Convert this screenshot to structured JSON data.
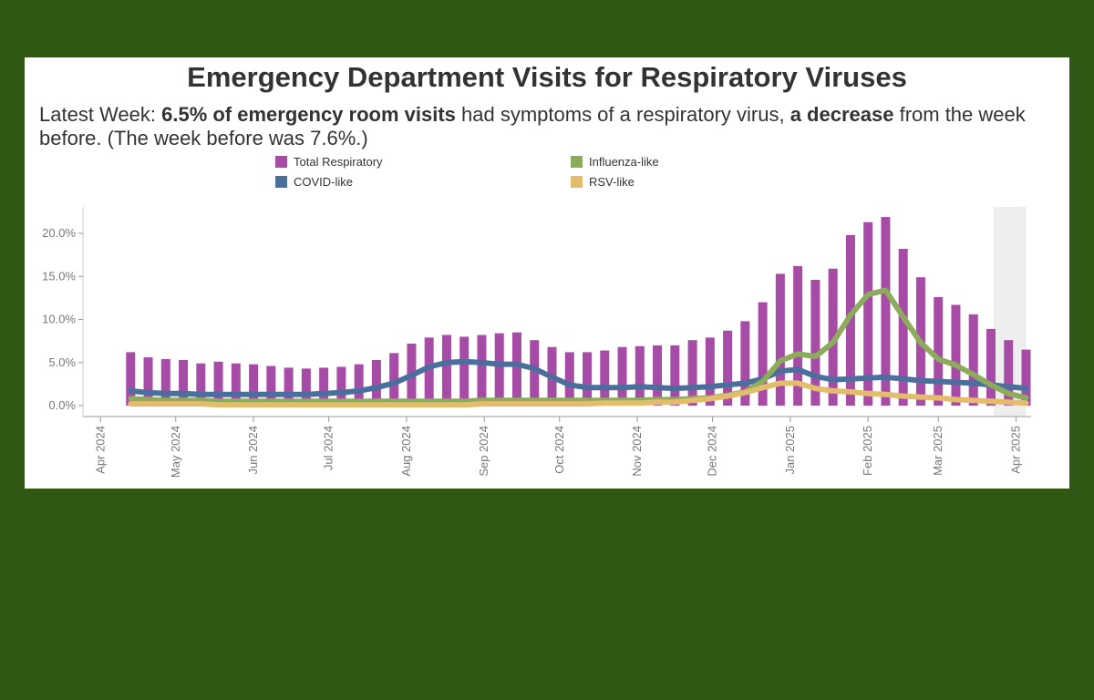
{
  "chart_data": {
    "type": "bar",
    "title": "Emergency Department Visits for Respiratory Viruses",
    "subtitle": {
      "p1": "Latest Week: ",
      "b1": "6.5% of emergency room visits",
      "p2": " had symptoms of a respiratory virus, ",
      "b2": "a decrease",
      "p3": " from the week before. (The week before was 7.6%.)"
    },
    "y_ticks": [
      "0.0%",
      "5.0%",
      "10.0%",
      "15.0%",
      "20.0%"
    ],
    "y_tick_values": [
      0,
      5,
      10,
      15,
      20
    ],
    "ylim": [
      0,
      22.8
    ],
    "x_ticks": [
      {
        "label": "Apr 2024",
        "date": "2024-04-01"
      },
      {
        "label": "May 2024",
        "date": "2024-05-01"
      },
      {
        "label": "Jun 2024",
        "date": "2024-06-01"
      },
      {
        "label": "Jul 2024",
        "date": "2024-07-01"
      },
      {
        "label": "Aug 2024",
        "date": "2024-08-01"
      },
      {
        "label": "Sep 2024",
        "date": "2024-09-01"
      },
      {
        "label": "Oct 2024",
        "date": "2024-10-01"
      },
      {
        "label": "Nov 2024",
        "date": "2024-11-01"
      },
      {
        "label": "Dec 2024",
        "date": "2024-12-01"
      },
      {
        "label": "Jan 2025",
        "date": "2025-01-01"
      },
      {
        "label": "Feb 2025",
        "date": "2025-02-01"
      },
      {
        "label": "Mar 2025",
        "date": "2025-03-01"
      },
      {
        "label": "Apr 2025",
        "date": "2025-04-01"
      }
    ],
    "xlim": [
      "2024-03-25",
      "2025-04-07"
    ],
    "highlight_range": [
      "2025-03-23",
      "2025-04-05"
    ],
    "legend_position": "top",
    "dates": [
      "2024-04-13",
      "2024-04-20",
      "2024-04-27",
      "2024-05-04",
      "2024-05-11",
      "2024-05-18",
      "2024-05-25",
      "2024-06-01",
      "2024-06-08",
      "2024-06-15",
      "2024-06-22",
      "2024-06-29",
      "2024-07-06",
      "2024-07-13",
      "2024-07-20",
      "2024-07-27",
      "2024-08-03",
      "2024-08-10",
      "2024-08-17",
      "2024-08-24",
      "2024-08-31",
      "2024-09-07",
      "2024-09-14",
      "2024-09-21",
      "2024-09-28",
      "2024-10-05",
      "2024-10-12",
      "2024-10-19",
      "2024-10-26",
      "2024-11-02",
      "2024-11-09",
      "2024-11-16",
      "2024-11-23",
      "2024-11-30",
      "2024-12-07",
      "2024-12-14",
      "2024-12-21",
      "2024-12-28",
      "2025-01-04",
      "2025-01-11",
      "2025-01-18",
      "2025-01-25",
      "2025-02-01",
      "2025-02-08",
      "2025-02-15",
      "2025-02-22",
      "2025-03-01",
      "2025-03-08",
      "2025-03-15",
      "2025-03-22",
      "2025-03-29",
      "2025-04-05"
    ],
    "series": [
      {
        "name": "Total Respiratory",
        "kind": "bar",
        "color": "#a64ca6",
        "values": [
          6.2,
          5.6,
          5.4,
          5.3,
          4.9,
          5.1,
          4.9,
          4.8,
          4.6,
          4.4,
          4.3,
          4.4,
          4.5,
          4.8,
          5.3,
          6.1,
          7.2,
          7.9,
          8.2,
          8.0,
          8.2,
          8.4,
          8.5,
          7.6,
          6.8,
          6.2,
          6.2,
          6.4,
          6.8,
          6.9,
          7.0,
          7.0,
          7.6,
          7.9,
          8.7,
          9.8,
          12.0,
          15.3,
          16.2,
          14.6,
          15.9,
          19.8,
          21.3,
          21.9,
          18.2,
          14.9,
          12.6,
          11.7,
          10.6,
          8.9,
          7.6,
          6.5
        ]
      },
      {
        "name": "COVID-like",
        "kind": "line",
        "color": "#4a6f9c",
        "values": [
          1.7,
          1.5,
          1.4,
          1.4,
          1.3,
          1.3,
          1.3,
          1.3,
          1.3,
          1.3,
          1.3,
          1.4,
          1.5,
          1.7,
          2.1,
          2.6,
          3.5,
          4.5,
          5.0,
          5.1,
          5.0,
          4.8,
          4.8,
          4.3,
          3.3,
          2.4,
          2.1,
          2.1,
          2.1,
          2.2,
          2.1,
          2.0,
          2.1,
          2.2,
          2.4,
          2.6,
          3.1,
          4.0,
          4.2,
          3.4,
          3.0,
          3.1,
          3.2,
          3.3,
          3.1,
          2.9,
          2.8,
          2.7,
          2.6,
          2.4,
          2.2,
          2.0
        ]
      },
      {
        "name": "Influenza-like",
        "kind": "line",
        "color": "#8cac5c",
        "values": [
          0.8,
          0.7,
          0.6,
          0.6,
          0.6,
          0.5,
          0.5,
          0.5,
          0.5,
          0.5,
          0.5,
          0.5,
          0.5,
          0.5,
          0.5,
          0.5,
          0.5,
          0.5,
          0.5,
          0.5,
          0.6,
          0.6,
          0.6,
          0.6,
          0.6,
          0.6,
          0.6,
          0.6,
          0.6,
          0.6,
          0.7,
          0.7,
          0.8,
          0.9,
          1.2,
          1.6,
          2.8,
          5.2,
          6.0,
          5.7,
          7.3,
          10.5,
          12.9,
          13.4,
          10.3,
          7.3,
          5.4,
          4.7,
          3.6,
          2.4,
          1.4,
          0.9
        ]
      },
      {
        "name": "RSV-like",
        "kind": "line",
        "color": "#e3bc6c",
        "values": [
          0.2,
          0.2,
          0.2,
          0.2,
          0.2,
          0.1,
          0.1,
          0.1,
          0.1,
          0.1,
          0.1,
          0.1,
          0.1,
          0.1,
          0.1,
          0.1,
          0.1,
          0.1,
          0.1,
          0.1,
          0.2,
          0.2,
          0.2,
          0.2,
          0.2,
          0.2,
          0.2,
          0.3,
          0.3,
          0.3,
          0.4,
          0.4,
          0.6,
          0.8,
          1.1,
          1.5,
          2.1,
          2.6,
          2.6,
          2.0,
          1.7,
          1.6,
          1.4,
          1.3,
          1.1,
          1.0,
          0.9,
          0.7,
          0.6,
          0.5,
          0.4,
          0.3
        ]
      }
    ]
  }
}
